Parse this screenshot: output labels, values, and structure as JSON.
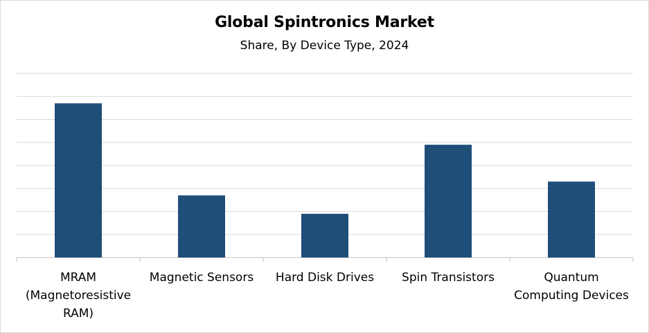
{
  "chart_data": {
    "type": "bar",
    "title": "Global Spintronics Market",
    "subtitle": "Share, By Device Type, 2024",
    "categories": [
      "MRAM (Magnetoresistive RAM)",
      "Magnetic Sensors",
      "Hard Disk Drives",
      "Spin Transistors",
      "Quantum Computing Devices"
    ],
    "category_lines": [
      [
        "MRAM",
        "(Magnetoresistive",
        "RAM)"
      ],
      [
        "Magnetic Sensors"
      ],
      [
        "Hard Disk Drives"
      ],
      [
        "Spin Transistors"
      ],
      [
        "Quantum",
        "Computing Devices"
      ]
    ],
    "values": [
      6.7,
      2.7,
      1.9,
      4.9,
      3.3
    ],
    "ylim": [
      0,
      8
    ],
    "ytick_step": 1,
    "show_ytick_labels": false,
    "grid": true,
    "bar_color": "#1f4e79",
    "grid_color": "#d9d9d9",
    "axis_color": "#bfbfbf",
    "xlabel": "",
    "ylabel": ""
  }
}
